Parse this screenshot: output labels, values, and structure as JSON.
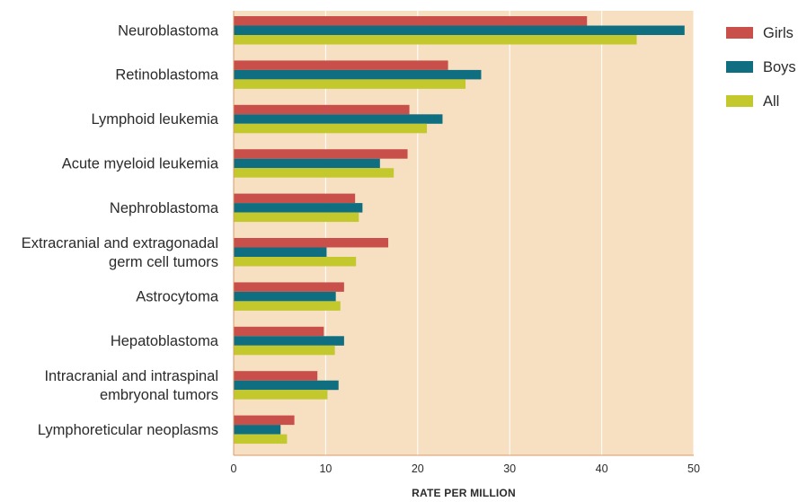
{
  "chart_data": {
    "type": "bar",
    "orientation": "horizontal",
    "categories": [
      [
        "Neuroblastoma"
      ],
      [
        "Retinoblastoma"
      ],
      [
        "Lymphoid leukemia"
      ],
      [
        "Acute myeloid leukemia"
      ],
      [
        "Nephroblastoma"
      ],
      [
        "Extracranial and extragonadal",
        "germ cell tumors"
      ],
      [
        "Astrocytoma"
      ],
      [
        "Hepatoblastoma"
      ],
      [
        "Intracranial and intraspinal",
        "embryonal tumors"
      ],
      [
        "Lymphoreticular neoplasms"
      ]
    ],
    "series": [
      {
        "name": "Girls",
        "color": "#c9504a",
        "values": [
          38.4,
          23.3,
          19.1,
          18.9,
          13.2,
          16.8,
          12.0,
          9.8,
          9.1,
          6.6
        ]
      },
      {
        "name": "Boys",
        "color": "#0f6f80",
        "values": [
          49.0,
          26.9,
          22.7,
          15.9,
          14.0,
          10.1,
          11.1,
          12.0,
          11.4,
          5.1
        ]
      },
      {
        "name": "All",
        "color": "#c3c92d",
        "values": [
          43.8,
          25.2,
          21.0,
          17.4,
          13.6,
          13.3,
          11.6,
          11.0,
          10.2,
          5.8
        ]
      }
    ],
    "xlabel": "RATE PER MILLION",
    "xlim": [
      0,
      50
    ],
    "xticks": [
      0,
      10,
      20,
      30,
      40,
      50
    ],
    "grid": "vertical",
    "legend_position": "top-right",
    "background_color": "#f7e0c2",
    "grid_color": "#ffffff",
    "axis_color": "#d89a6a"
  }
}
